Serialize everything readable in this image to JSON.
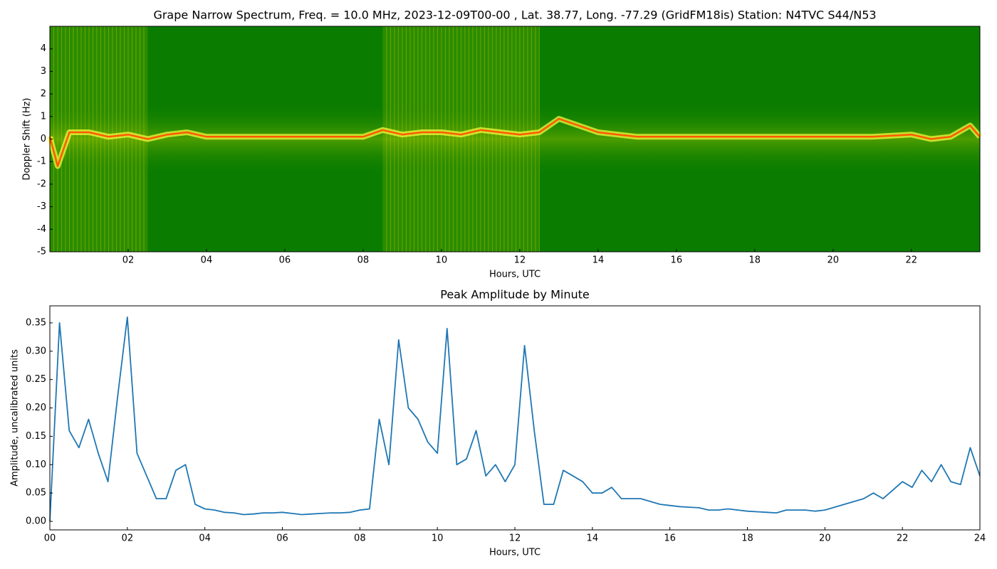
{
  "chart_data": [
    {
      "type": "spectrogram",
      "title": "Grape Narrow Spectrum, Freq. = 10.0 MHz, 2023-12-09T00-00 , Lat.  38.77, Long. -77.29 (GridFM18is) Station: N4TVC S44/N53",
      "xlabel": "Hours, UTC",
      "ylabel": "Doppler Shift (Hz)",
      "x": [
        0,
        0.2,
        0.5,
        1,
        1.5,
        2,
        2.5,
        3,
        3.5,
        4,
        5,
        6,
        7,
        8,
        8.5,
        9,
        9.5,
        10,
        10.5,
        11,
        11.5,
        12,
        12.5,
        13,
        13.5,
        14,
        14.5,
        15,
        16,
        17,
        18,
        19,
        20,
        21,
        22,
        22.5,
        23,
        23.5,
        23.75
      ],
      "values": [
        0.1,
        -1.2,
        0.3,
        0.3,
        0.1,
        0.2,
        0.0,
        0.2,
        0.3,
        0.1,
        0.1,
        0.1,
        0.1,
        0.1,
        0.4,
        0.2,
        0.3,
        0.3,
        0.2,
        0.4,
        0.3,
        0.2,
        0.3,
        0.9,
        0.6,
        0.3,
        0.2,
        0.1,
        0.1,
        0.1,
        0.1,
        0.1,
        0.1,
        0.1,
        0.2,
        0.0,
        0.1,
        0.6,
        0.1
      ],
      "color": "#ff5a00",
      "xlim": [
        0,
        23.75
      ],
      "ylim": [
        -5,
        5
      ],
      "xticks": [
        {
          "value": 2,
          "label": "02"
        },
        {
          "value": 4,
          "label": "04"
        },
        {
          "value": 6,
          "label": "06"
        },
        {
          "value": 8,
          "label": "08"
        },
        {
          "value": 10,
          "label": "10"
        },
        {
          "value": 12,
          "label": "12"
        },
        {
          "value": 14,
          "label": "14"
        },
        {
          "value": 16,
          "label": "16"
        },
        {
          "value": 18,
          "label": "18"
        },
        {
          "value": 20,
          "label": "20"
        },
        {
          "value": 22,
          "label": "22"
        }
      ],
      "yticks": [
        -5,
        -4,
        -3,
        -2,
        -1,
        0,
        1,
        2,
        3,
        4
      ]
    },
    {
      "type": "line",
      "title": "Peak Amplitude by Minute",
      "xlabel": "Hours, UTC",
      "ylabel": "Amplitude, uncalibrated units",
      "x": [
        0,
        0.25,
        0.5,
        0.75,
        1,
        1.25,
        1.5,
        1.75,
        2,
        2.25,
        2.5,
        2.75,
        3,
        3.25,
        3.5,
        3.75,
        4,
        4.25,
        4.5,
        4.75,
        5,
        5.25,
        5.5,
        5.75,
        6,
        6.25,
        6.5,
        6.75,
        7,
        7.25,
        7.5,
        7.75,
        8,
        8.25,
        8.5,
        8.75,
        9,
        9.25,
        9.5,
        9.75,
        10,
        10.25,
        10.5,
        10.75,
        11,
        11.25,
        11.5,
        11.75,
        12,
        12.25,
        12.5,
        12.75,
        13,
        13.25,
        13.5,
        13.75,
        14,
        14.25,
        14.5,
        14.75,
        15,
        15.25,
        15.5,
        15.75,
        16,
        16.25,
        16.5,
        16.75,
        17,
        17.25,
        17.5,
        17.75,
        18,
        18.25,
        18.5,
        18.75,
        19,
        19.25,
        19.5,
        19.75,
        20,
        20.25,
        20.5,
        20.75,
        21,
        21.25,
        21.5,
        21.75,
        22,
        22.25,
        22.5,
        22.75,
        23,
        23.25,
        23.5,
        23.75,
        24
      ],
      "values": [
        0.0,
        0.35,
        0.16,
        0.13,
        0.18,
        0.12,
        0.07,
        0.22,
        0.36,
        0.12,
        0.08,
        0.04,
        0.04,
        0.09,
        0.1,
        0.03,
        0.022,
        0.02,
        0.016,
        0.015,
        0.012,
        0.013,
        0.015,
        0.015,
        0.016,
        0.014,
        0.012,
        0.013,
        0.014,
        0.015,
        0.015,
        0.016,
        0.02,
        0.022,
        0.18,
        0.1,
        0.32,
        0.2,
        0.18,
        0.14,
        0.12,
        0.34,
        0.1,
        0.11,
        0.16,
        0.08,
        0.1,
        0.07,
        0.1,
        0.31,
        0.16,
        0.03,
        0.03,
        0.09,
        0.08,
        0.07,
        0.05,
        0.05,
        0.06,
        0.04,
        0.04,
        0.04,
        0.035,
        0.03,
        0.028,
        0.026,
        0.025,
        0.024,
        0.02,
        0.02,
        0.022,
        0.02,
        0.018,
        0.017,
        0.016,
        0.015,
        0.02,
        0.02,
        0.02,
        0.018,
        0.02,
        0.025,
        0.03,
        0.035,
        0.04,
        0.05,
        0.04,
        0.055,
        0.07,
        0.06,
        0.09,
        0.07,
        0.1,
        0.07,
        0.065,
        0.13,
        0.08
      ],
      "color": "#1f77b4",
      "xlim": [
        0,
        24
      ],
      "ylim": [
        -0.015,
        0.38
      ],
      "xticks": [
        {
          "value": 0,
          "label": "00"
        },
        {
          "value": 2,
          "label": "02"
        },
        {
          "value": 4,
          "label": "04"
        },
        {
          "value": 6,
          "label": "06"
        },
        {
          "value": 8,
          "label": "08"
        },
        {
          "value": 10,
          "label": "10"
        },
        {
          "value": 12,
          "label": "12"
        },
        {
          "value": 14,
          "label": "14"
        },
        {
          "value": 16,
          "label": "16"
        },
        {
          "value": 18,
          "label": "18"
        },
        {
          "value": 20,
          "label": "20"
        },
        {
          "value": 22,
          "label": "22"
        },
        {
          "value": 24,
          "label": "24"
        }
      ],
      "yticks": [
        {
          "value": 0,
          "label": "0.00"
        },
        0.05,
        {
          "value": 0.1,
          "label": "0.10"
        },
        0.15,
        {
          "value": 0.2,
          "label": "0.20"
        },
        0.25,
        {
          "value": 0.3,
          "label": "0.30"
        },
        0.35
      ]
    }
  ]
}
